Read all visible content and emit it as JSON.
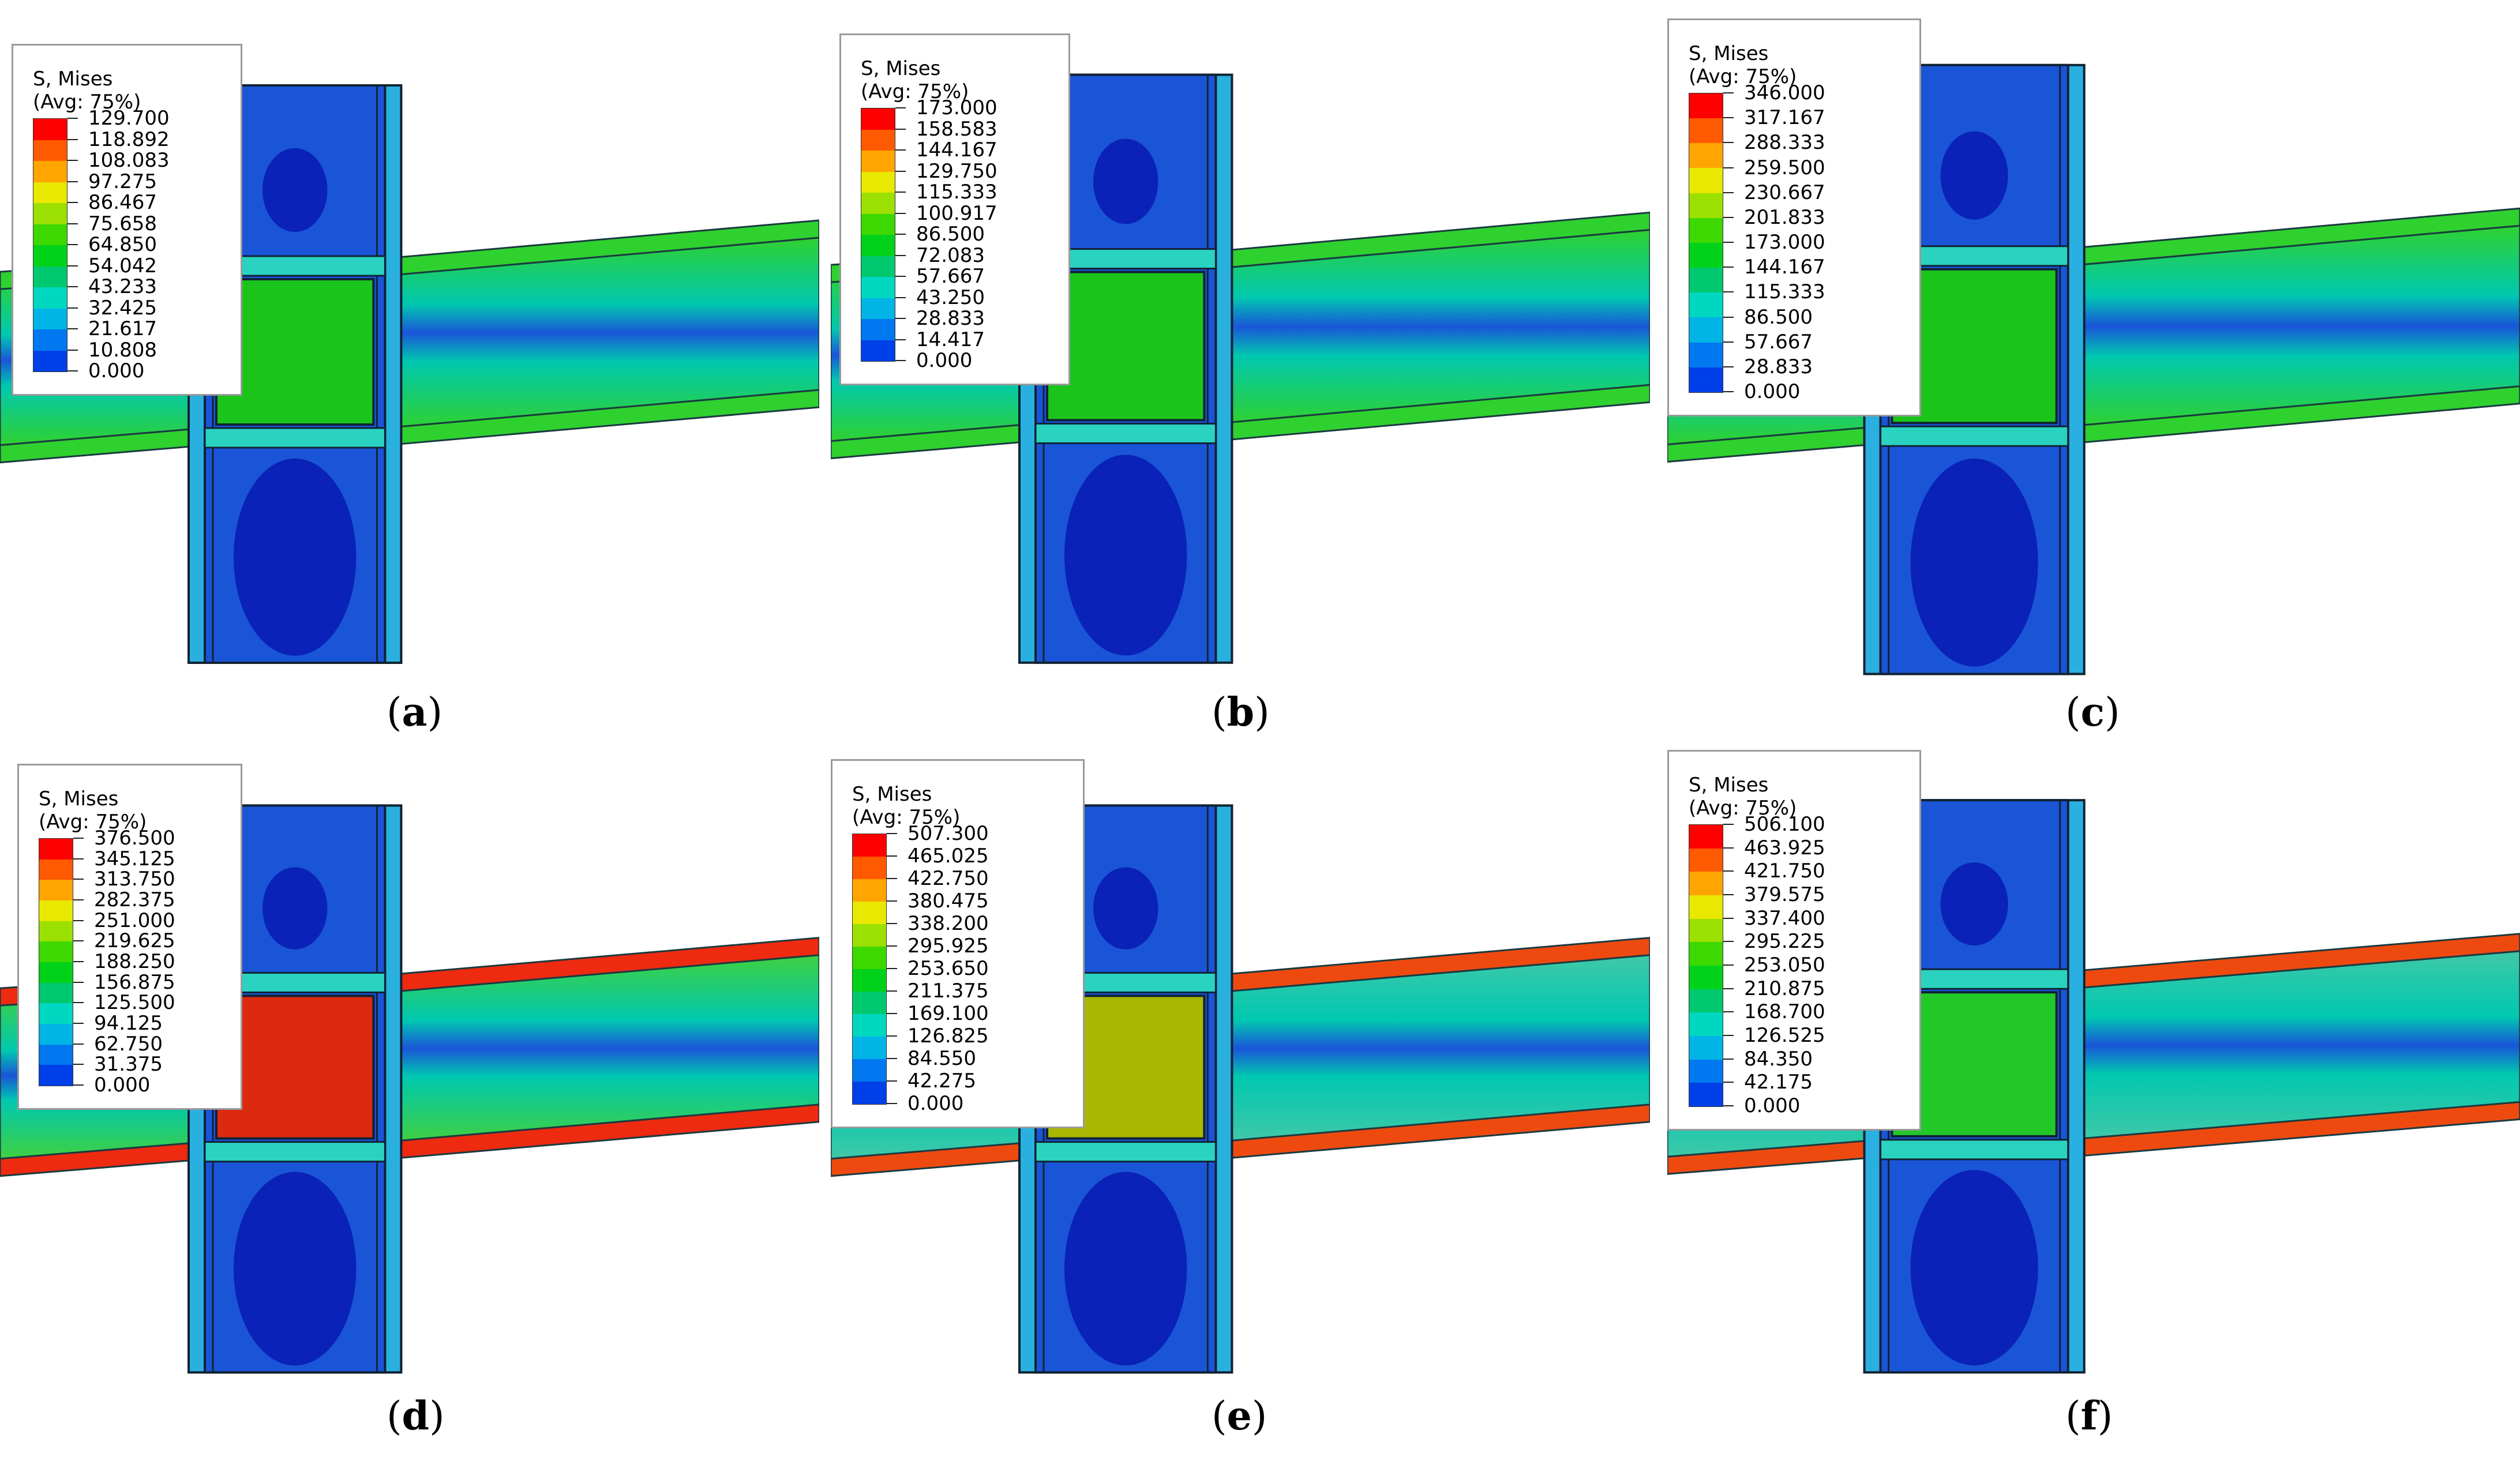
{
  "legend_title_line1": "S, Mises",
  "legend_title_line2": "(Avg: 75%)",
  "color_scale": [
    "#ff0000",
    "#ff5a00",
    "#ffa500",
    "#e8e800",
    "#9be000",
    "#3cd800",
    "#00d21a",
    "#00c86e",
    "#00d7c0",
    "#00b4e6",
    "#0078f0",
    "#0040e8",
    "#0000d8"
  ],
  "colors": {
    "beam_green": "#2fd12f",
    "column_blue": "#1a55d8",
    "column_side": "#2ab0e0",
    "deep_blue": "#0a22b8",
    "hot_red": "#ee2200"
  },
  "panels": [
    {
      "caption": "a",
      "legend_values": [
        "129.700",
        "118.892",
        "108.083",
        "97.275",
        "86.467",
        "75.658",
        "64.850",
        "54.042",
        "43.233",
        "32.425",
        "21.617",
        "10.808",
        "0.000"
      ],
      "panel_zone_color": "#1bc41b",
      "beam_color": "#2fd12f",
      "beam_hot_color": "#2fd12f"
    },
    {
      "caption": "b",
      "legend_values": [
        "173.000",
        "158.583",
        "144.167",
        "129.750",
        "115.333",
        "100.917",
        "86.500",
        "72.083",
        "57.667",
        "43.250",
        "28.833",
        "14.417",
        "0.000"
      ],
      "panel_zone_color": "#1bc41b",
      "beam_color": "#2fd12f",
      "beam_hot_color": "#2fd12f"
    },
    {
      "caption": "c",
      "legend_values": [
        "346.000",
        "317.167",
        "288.333",
        "259.500",
        "230.667",
        "201.833",
        "173.000",
        "144.167",
        "115.333",
        "86.500",
        "57.667",
        "28.833",
        "0.000"
      ],
      "panel_zone_color": "#1bc41b",
      "beam_color": "#2fd12f",
      "beam_hot_color": "#2fd12f"
    },
    {
      "caption": "d",
      "legend_values": [
        "376.500",
        "345.125",
        "313.750",
        "282.375",
        "251.000",
        "219.625",
        "188.250",
        "156.875",
        "125.500",
        "94.125",
        "62.750",
        "31.375",
        "0.000"
      ],
      "panel_zone_color": "#dc2a10",
      "beam_color": "#3fd040",
      "beam_hot_color": "#ee2a10"
    },
    {
      "caption": "e",
      "legend_values": [
        "507.300",
        "465.025",
        "422.750",
        "380.475",
        "338.200",
        "295.925",
        "253.650",
        "211.375",
        "169.100",
        "126.825",
        "84.550",
        "42.275",
        "0.000"
      ],
      "panel_zone_color": "#a8b800",
      "beam_color": "#40c8a8",
      "beam_hot_color": "#ee4a10"
    },
    {
      "caption": "f",
      "legend_values": [
        "506.100",
        "463.925",
        "421.750",
        "379.575",
        "337.400",
        "295.225",
        "253.050",
        "210.875",
        "168.700",
        "126.525",
        "84.350",
        "42.175",
        "0.000"
      ],
      "panel_zone_color": "#22c828",
      "beam_color": "#40c8a8",
      "beam_hot_color": "#ee4a10"
    }
  ]
}
